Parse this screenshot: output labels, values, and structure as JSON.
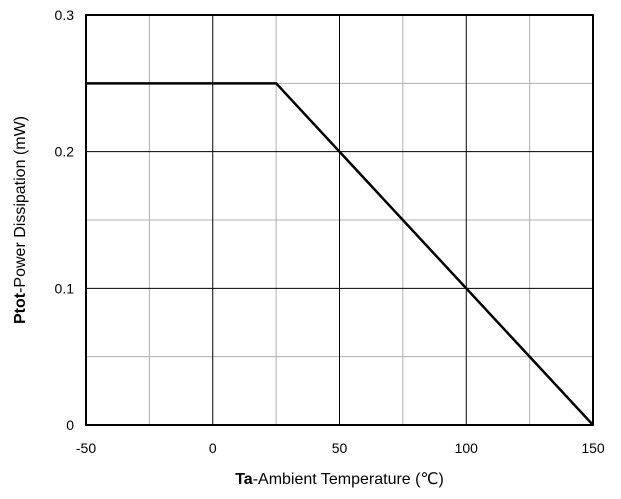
{
  "chart_data": {
    "type": "line",
    "xlabel": {
      "bold": "Ta",
      "rest": "-Ambient Temperature  (℃)"
    },
    "ylabel": {
      "bold": "Ptot",
      "rest": "-Power Dissipation  (mW)"
    },
    "xlim": [
      -50,
      150
    ],
    "ylim": [
      0,
      0.3
    ],
    "x_ticks": [
      -50,
      0,
      50,
      100,
      150
    ],
    "x_tick_labels": [
      "-50",
      "0",
      "50",
      "100",
      "150"
    ],
    "y_ticks": [
      0,
      0.1,
      0.2,
      0.3
    ],
    "y_tick_labels": [
      "0",
      "0.1",
      "0.2",
      "0.3"
    ],
    "x_minor_grid": [
      -25,
      25,
      75,
      125
    ],
    "y_minor_grid": [
      0.05,
      0.15,
      0.25
    ],
    "grid": true,
    "legend": "none",
    "series": [
      {
        "x": [
          -50,
          25,
          150
        ],
        "y": [
          0.25,
          0.25,
          0
        ],
        "color": "#000000"
      }
    ],
    "colors": {
      "major_grid": "#000000",
      "minor_grid": "#b0b0b0",
      "line": "#000000"
    }
  }
}
